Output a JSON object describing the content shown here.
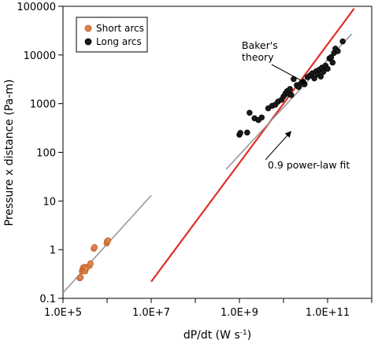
{
  "chart_data": {
    "type": "scatter",
    "title": "",
    "xlabel": "dP/dt (W s",
    "xlabel_sup": "-1",
    "xlabel_end": ")",
    "ylabel": "Pressure x distance (Pa-m)",
    "xscale": "log",
    "yscale": "log",
    "xlim": [
      100000,
      1000000000000
    ],
    "ylim": [
      0.1,
      100000
    ],
    "x_ticks": [
      {
        "value": 100000,
        "label": "1.0E+5"
      },
      {
        "value": 10000000,
        "label": "1.0E+7"
      },
      {
        "value": 1000000000,
        "label": "1.0E+9"
      },
      {
        "value": 100000000000,
        "label": "1.0E+11"
      }
    ],
    "y_ticks": [
      {
        "value": 0.1,
        "label": "0.1"
      },
      {
        "value": 1,
        "label": "1"
      },
      {
        "value": 10,
        "label": "10"
      },
      {
        "value": 100,
        "label": "100"
      },
      {
        "value": 1000,
        "label": "1000"
      },
      {
        "value": 10000,
        "label": "10000"
      },
      {
        "value": 100000,
        "label": "100000"
      }
    ],
    "grid": false,
    "legend_position": "top-left",
    "colors": {
      "short_arcs": "#e0834a",
      "long_arcs": "#1a1a1a",
      "baker_line": "#e0302a",
      "fit_line": "#9a9a9a"
    },
    "series": [
      {
        "name": "Short arcs",
        "marker": "circle",
        "points": [
          [
            240000,
            0.26
          ],
          [
            250000,
            0.27
          ],
          [
            270000,
            0.36
          ],
          [
            280000,
            0.4
          ],
          [
            290000,
            0.43
          ],
          [
            300000,
            0.38
          ],
          [
            310000,
            0.44
          ],
          [
            320000,
            0.36
          ],
          [
            340000,
            0.42
          ],
          [
            400000,
            0.47
          ],
          [
            420000,
            0.52
          ],
          [
            500000,
            1.05
          ],
          [
            520000,
            1.12
          ],
          [
            980000,
            1.35
          ],
          [
            1000000,
            1.48
          ],
          [
            1050000,
            1.55
          ]
        ]
      },
      {
        "name": "Long arcs",
        "marker": "circle",
        "points": [
          [
            1000000000.0,
            230
          ],
          [
            1050000000.0,
            250
          ],
          [
            1500000000.0,
            255
          ],
          [
            1700000000.0,
            650
          ],
          [
            2200000000.0,
            500
          ],
          [
            2700000000.0,
            460
          ],
          [
            3200000000.0,
            520
          ],
          [
            4500000000.0,
            800
          ],
          [
            5500000000.0,
            900
          ],
          [
            6500000000.0,
            950
          ],
          [
            7500000000.0,
            1100
          ],
          [
            9000000000.0,
            1200
          ],
          [
            10000000000.0,
            1400
          ],
          [
            11000000000.0,
            1600
          ],
          [
            12000000000.0,
            1800
          ],
          [
            13000000000.0,
            1600
          ],
          [
            14000000000.0,
            2000
          ],
          [
            15000000000.0,
            1500
          ],
          [
            17000000000.0,
            3200
          ],
          [
            20000000000.0,
            2400
          ],
          [
            22000000000.0,
            2200
          ],
          [
            25000000000.0,
            2600
          ],
          [
            28000000000.0,
            2800
          ],
          [
            30000000000.0,
            2500
          ],
          [
            35000000000.0,
            3500
          ],
          [
            40000000000.0,
            3800
          ],
          [
            45000000000.0,
            4200
          ],
          [
            50000000000.0,
            3300
          ],
          [
            55000000000.0,
            4600
          ],
          [
            60000000000.0,
            4000
          ],
          [
            65000000000.0,
            5000
          ],
          [
            70000000000.0,
            3600
          ],
          [
            75000000000.0,
            5500
          ],
          [
            80000000000.0,
            4500
          ],
          [
            90000000000.0,
            6000
          ],
          [
            100000000000.0,
            5200
          ],
          [
            110000000000.0,
            8500
          ],
          [
            120000000000.0,
            9000
          ],
          [
            130000000000.0,
            7000
          ],
          [
            140000000000.0,
            11000
          ],
          [
            150000000000.0,
            13500
          ],
          [
            170000000000.0,
            12000
          ],
          [
            220000000000.0,
            19000
          ]
        ]
      }
    ],
    "lines": [
      {
        "name": "Baker's theory",
        "points": [
          [
            10000000.0,
            0.22
          ],
          [
            400000000000.0,
            90000
          ]
        ]
      },
      {
        "name": "0.9 power-law fit",
        "points": [
          [
            500000000.0,
            45
          ],
          [
            350000000000.0,
            27000
          ]
        ]
      },
      {
        "name": "0.9 power-law fit (short)",
        "points": [
          [
            100000,
            0.13
          ],
          [
            10000000.0,
            13
          ]
        ]
      }
    ],
    "annotations": [
      {
        "text_lines": [
          "Baker's",
          "theory"
        ],
        "target": [
          35000000000.0,
          2800
        ]
      },
      {
        "text_lines": [
          "0.9 power-law fit"
        ],
        "target": [
          13000000000.0,
          230
        ]
      }
    ],
    "legend": [
      {
        "label": "Short arcs",
        "series": 0
      },
      {
        "label": "Long arcs",
        "series": 1
      }
    ]
  }
}
